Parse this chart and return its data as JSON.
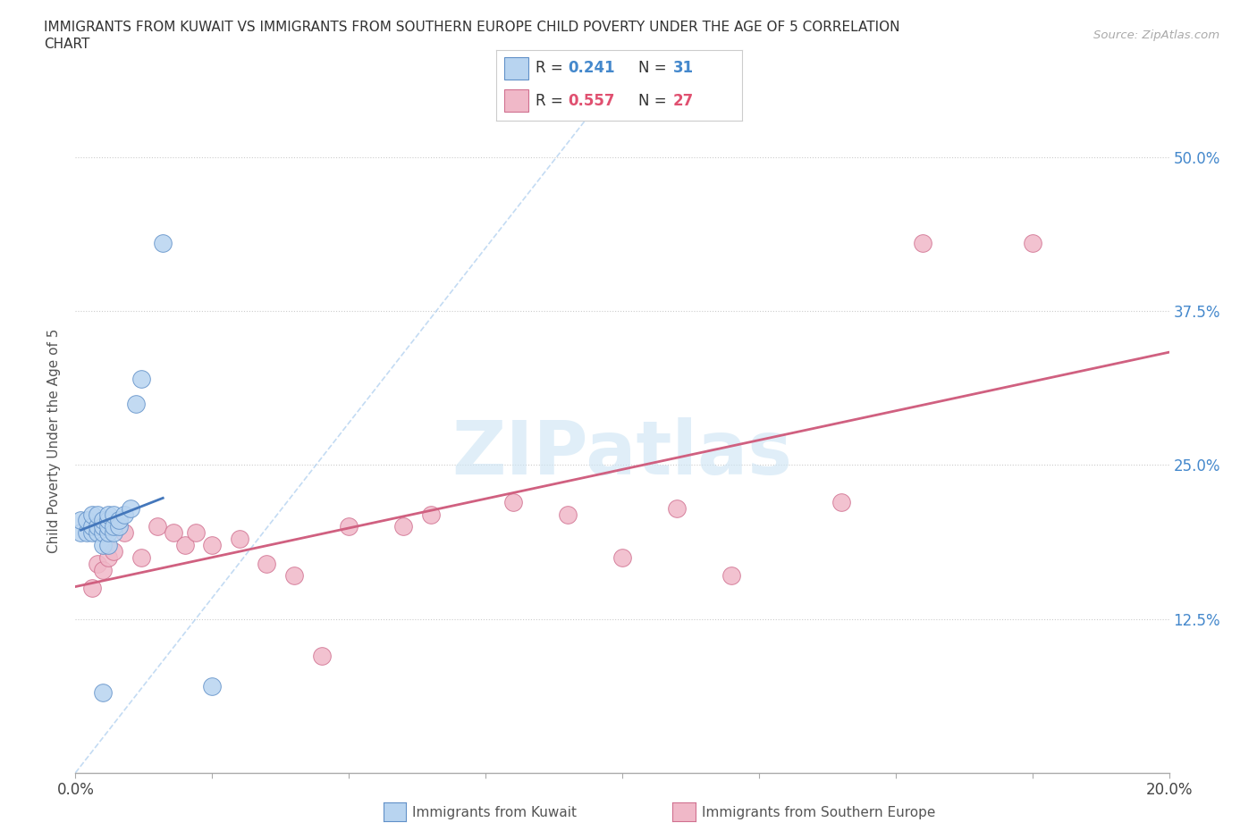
{
  "title_line1": "IMMIGRANTS FROM KUWAIT VS IMMIGRANTS FROM SOUTHERN EUROPE CHILD POVERTY UNDER THE AGE OF 5 CORRELATION",
  "title_line2": "CHART",
  "source": "Source: ZipAtlas.com",
  "ylabel": "Child Poverty Under the Age of 5",
  "xlim": [
    0.0,
    0.2
  ],
  "ylim": [
    0.0,
    0.54
  ],
  "xtick_positions": [
    0.0,
    0.025,
    0.05,
    0.075,
    0.1,
    0.125,
    0.15,
    0.175,
    0.2
  ],
  "xtick_labels": [
    "0.0%",
    "",
    "",
    "",
    "",
    "",
    "",
    "",
    "20.0%"
  ],
  "ytick_positions": [
    0.125,
    0.25,
    0.375,
    0.5
  ],
  "ytick_labels": [
    "12.5%",
    "25.0%",
    "37.5%",
    "50.0%"
  ],
  "R_kuwait": "0.241",
  "N_kuwait": "31",
  "R_southern": "0.557",
  "N_southern": "27",
  "color_kuwait_fill": "#b8d4f0",
  "color_kuwait_edge": "#6090c8",
  "color_kuwait_line": "#4477bb",
  "color_kuwait_text": "#4488cc",
  "color_southern_fill": "#f0b8c8",
  "color_southern_edge": "#d07090",
  "color_southern_line": "#d06080",
  "color_southern_text": "#e05070",
  "color_diag_line": "#aaccee",
  "color_grid": "#cccccc",
  "color_axis": "#aaaaaa",
  "watermark_color": "#cce4f4",
  "background_color": "#ffffff",
  "kuwait_x": [
    0.001,
    0.001,
    0.002,
    0.002,
    0.003,
    0.003,
    0.003,
    0.004,
    0.004,
    0.004,
    0.005,
    0.005,
    0.005,
    0.005,
    0.006,
    0.006,
    0.006,
    0.006,
    0.006,
    0.007,
    0.007,
    0.007,
    0.008,
    0.008,
    0.009,
    0.01,
    0.011,
    0.012,
    0.016,
    0.025,
    0.005
  ],
  "kuwait_y": [
    0.195,
    0.205,
    0.195,
    0.205,
    0.195,
    0.2,
    0.21,
    0.195,
    0.2,
    0.21,
    0.185,
    0.195,
    0.2,
    0.205,
    0.185,
    0.195,
    0.2,
    0.205,
    0.21,
    0.195,
    0.2,
    0.21,
    0.2,
    0.205,
    0.21,
    0.215,
    0.3,
    0.32,
    0.43,
    0.07,
    0.065
  ],
  "southern_x": [
    0.003,
    0.004,
    0.005,
    0.006,
    0.007,
    0.009,
    0.012,
    0.015,
    0.018,
    0.02,
    0.022,
    0.025,
    0.03,
    0.035,
    0.04,
    0.045,
    0.05,
    0.06,
    0.065,
    0.08,
    0.09,
    0.1,
    0.11,
    0.12,
    0.14,
    0.155,
    0.175
  ],
  "southern_y": [
    0.15,
    0.17,
    0.165,
    0.175,
    0.18,
    0.195,
    0.175,
    0.2,
    0.195,
    0.185,
    0.195,
    0.185,
    0.19,
    0.17,
    0.16,
    0.095,
    0.2,
    0.2,
    0.21,
    0.22,
    0.21,
    0.175,
    0.215,
    0.16,
    0.22,
    0.43,
    0.43
  ]
}
